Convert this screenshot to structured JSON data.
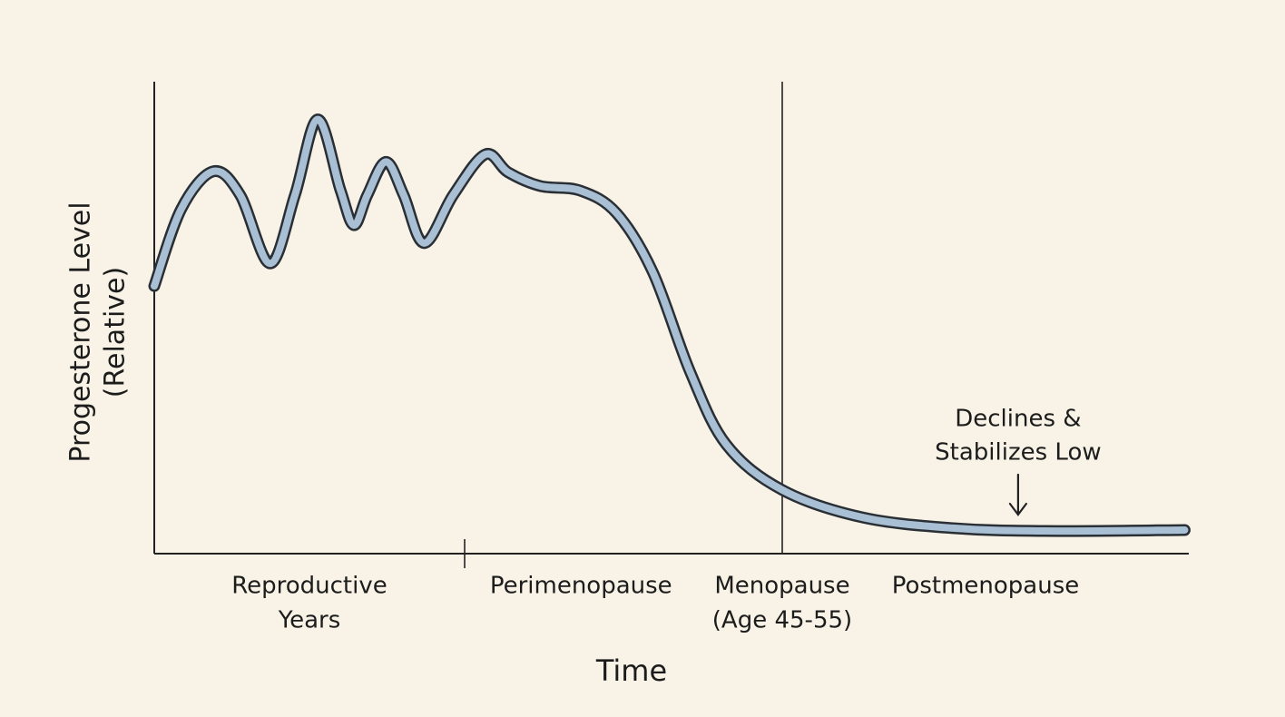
{
  "chart_data": {
    "type": "line",
    "y_label": [
      "Progesterone Level",
      "(Relative)"
    ],
    "x_label": "Time",
    "xlim": [
      0,
      100
    ],
    "ylim": [
      0,
      100
    ],
    "x": [
      0,
      2.6,
      5.7,
      8.3,
      11.2,
      13.6,
      15.8,
      18.0,
      19.3,
      20.6,
      22.4,
      24.1,
      26.1,
      28.9,
      32.0,
      34.2,
      37.3,
      41.2,
      44.7,
      48.2,
      51.8,
      55.3,
      60.7,
      68.4,
      77.2,
      86.0,
      99.6
    ],
    "series": [
      {
        "color": "#a9bfd3",
        "values": [
          56.7,
          73,
          81,
          76,
          61.5,
          76,
          92,
          77,
          69.6,
          76,
          83,
          76,
          65.8,
          76,
          84.6,
          80.8,
          77.9,
          76.9,
          72.1,
          59.6,
          38.5,
          23.1,
          13.5,
          7.7,
          5.4,
          4.8,
          5
        ]
      }
    ],
    "phases": [
      {
        "label": [
          "Reproductive",
          "Years"
        ],
        "start": 0,
        "end": 30
      },
      {
        "label": [
          "Perimenopause"
        ],
        "start": 30,
        "end": 52.5
      },
      {
        "label": [
          "Menopause",
          "(Age 45-55)"
        ],
        "start": 60.7,
        "end": 60.7
      },
      {
        "label": [
          "Postmenopause"
        ],
        "start": 60.7,
        "end": 100
      }
    ],
    "annotation": {
      "text": [
        "Declines &",
        "Stabilizes Low"
      ],
      "x": 83.5
    }
  }
}
